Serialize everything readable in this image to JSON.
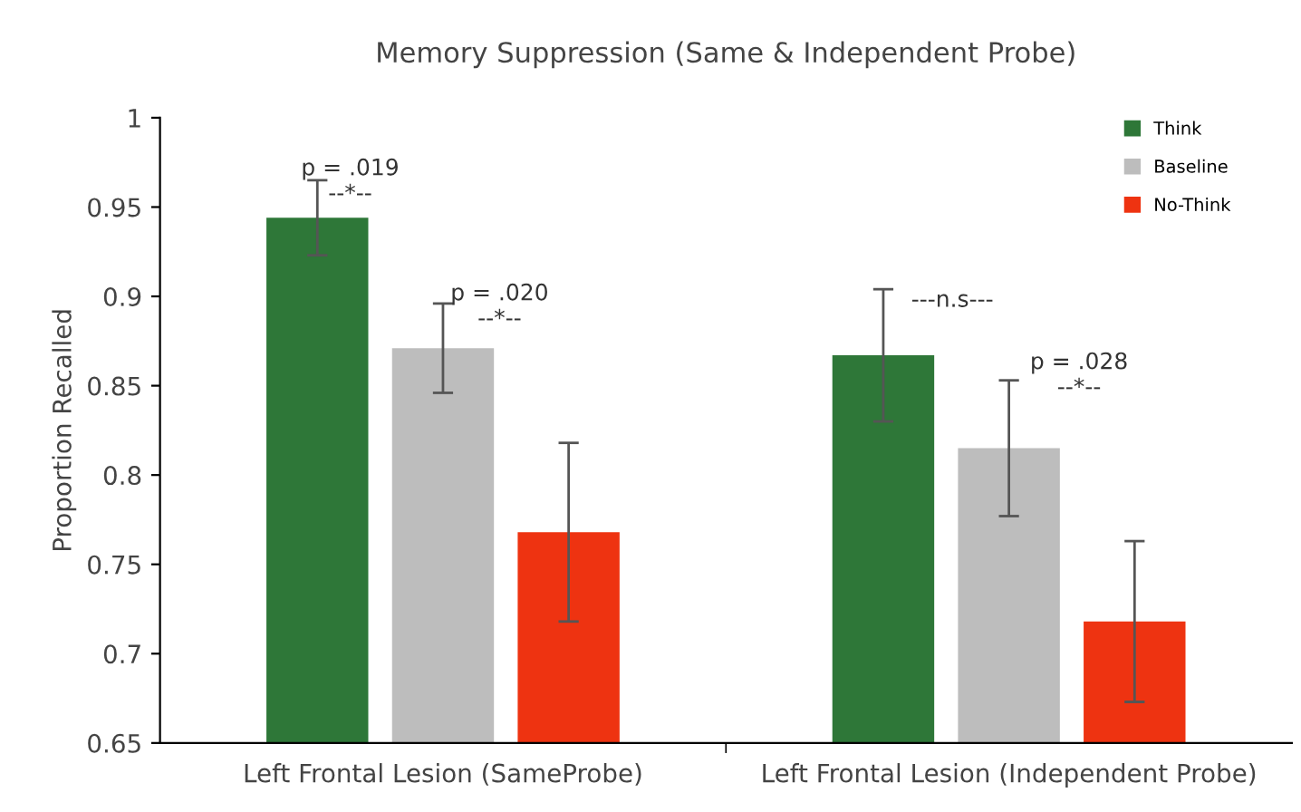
{
  "chart_data": {
    "type": "bar",
    "title": "Memory Suppression (Same & Independent Probe)",
    "ylabel": "Proportion Recalled",
    "categories": [
      "Left Frontal Lesion (SameProbe)",
      "Left Frontal Lesion (Independent Probe)"
    ],
    "series": [
      {
        "name": "Think",
        "color": "#2e7738",
        "values": [
          0.944,
          0.867
        ],
        "errors": [
          0.021,
          0.037
        ]
      },
      {
        "name": "Baseline",
        "color": "#bdbdbd",
        "values": [
          0.871,
          0.815
        ],
        "errors": [
          0.025,
          0.038
        ]
      },
      {
        "name": "No-Think",
        "color": "#ee3311",
        "values": [
          0.768,
          0.718
        ],
        "errors": [
          0.05,
          0.045
        ]
      }
    ],
    "ylim": [
      0.65,
      1
    ],
    "yticks": [
      0.65,
      0.7,
      0.75,
      0.8,
      0.85,
      0.9,
      0.95,
      1
    ],
    "grid": false,
    "legend": "top right",
    "annotations": [
      "p = .019\n--*--",
      "p = .020\n--*--",
      "---n.s---",
      "p = .028\n--*--"
    ]
  }
}
